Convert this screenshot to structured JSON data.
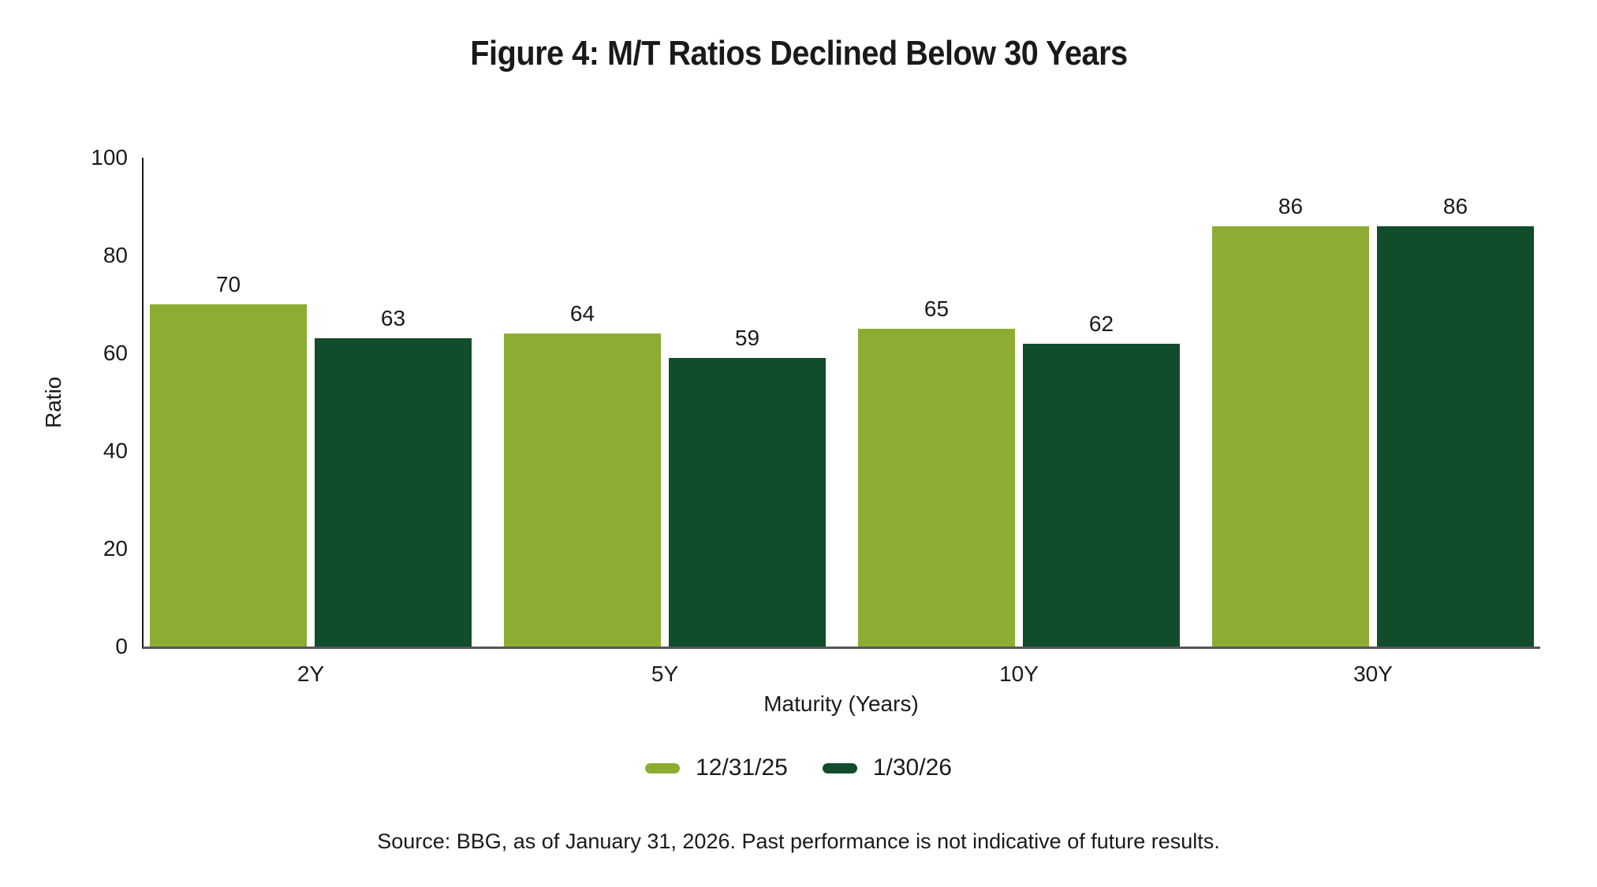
{
  "title": "Figure 4: M/T Ratios Declined Below 30 Years",
  "source_note": "Source: BBG, as of January 31, 2026. Past performance is not indicative of future results.",
  "colors": {
    "series_light_green": "#8CAD32",
    "series_dark_green": "#114C2B",
    "y_axis_line": "#1a1a1a",
    "x_axis_line": "#54585a",
    "text": "#1a1a1a",
    "background": "#ffffff"
  },
  "chart_data": {
    "type": "bar",
    "title": "Figure 4: M/T Ratios Declined Below 30 Years",
    "categories": [
      "2Y",
      "5Y",
      "10Y",
      "30Y"
    ],
    "series": [
      {
        "name": "12/31/25",
        "color": "#8CAD32",
        "values": [
          70,
          64,
          65,
          86
        ]
      },
      {
        "name": "1/30/26",
        "color": "#114C2B",
        "values": [
          63,
          59,
          62,
          86
        ]
      }
    ],
    "xlabel": "Maturity (Years)",
    "ylabel": "Ratio",
    "ylim": [
      0,
      100
    ],
    "yticks": [
      0,
      20,
      40,
      60,
      80,
      100
    ],
    "grid": false,
    "bar_value_labels": true,
    "legend_position": "bottom"
  }
}
